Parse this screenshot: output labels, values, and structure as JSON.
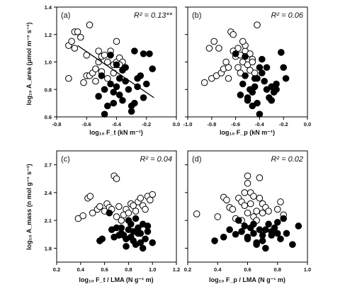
{
  "figure": {
    "ylabel_top": "log₁₀ A_area (μmol m⁻² s⁻¹)",
    "ylabel_bottom": "log₁₀ A_mass (n mol g⁻¹ s⁻¹)",
    "xlabels": [
      "log₁₀ F_t (kN m⁻¹)",
      "log₁₀ F_p (kN m⁻¹)",
      "log₁₀ F_t / LMA (N g⁻¹ m)",
      "log₁₀ F_p / LMA (N g⁻¹ m)"
    ]
  },
  "chart_data": [
    {
      "type": "scatter",
      "panel": "(a)",
      "annotation": "R² = 0.13**",
      "xlabel": "log₁₀ F_t (kN m⁻¹)",
      "ylabel": "log₁₀ A_area (μmol m⁻² s⁻¹)",
      "xlim": [
        -0.8,
        0.0
      ],
      "ylim": [
        0.6,
        1.4
      ],
      "xticks": [
        -0.8,
        -0.6,
        -0.4,
        -0.2,
        0.0
      ],
      "xticklabels": [
        "-0.8",
        "-0.6",
        "-0.4",
        "-0.2",
        "0.0"
      ],
      "yticks": [
        0.6,
        0.8,
        1.0,
        1.2,
        1.4
      ],
      "yticklabels": [
        "0.6",
        "0.8",
        "1.0",
        "1.2",
        "1.4"
      ],
      "regression_line": {
        "x": [
          -0.66,
          -0.15
        ],
        "y": [
          1.12,
          0.74
        ]
      },
      "series": [
        {
          "marker": "open-circle",
          "x": [
            -0.72,
            -0.7,
            -0.68,
            -0.66,
            -0.64,
            -0.62,
            -0.6,
            -0.58,
            -0.56,
            -0.54,
            -0.52,
            -0.5,
            -0.48,
            -0.46,
            -0.44,
            -0.42,
            -0.4,
            -0.38,
            -0.36,
            -0.72,
            -0.68,
            -0.58,
            -0.54,
            -0.5,
            -0.46,
            -0.42,
            -0.4,
            -0.52,
            -0.6,
            -0.38
          ],
          "y": [
            1.12,
            1.15,
            1.22,
            1.22,
            1.18,
            0.85,
            0.9,
            0.9,
            0.92,
            0.95,
            1.0,
            1.04,
            1.05,
            1.0,
            1.08,
            0.98,
            1.0,
            1.03,
            1.0,
            0.88,
            1.1,
            1.27,
            0.86,
            0.93,
            0.88,
            0.92,
            1.15,
            1.08,
            1.05,
            0.98
          ]
        },
        {
          "marker": "filled-circle",
          "x": [
            -0.52,
            -0.5,
            -0.48,
            -0.46,
            -0.44,
            -0.42,
            -0.4,
            -0.38,
            -0.36,
            -0.34,
            -0.32,
            -0.3,
            -0.28,
            -0.26,
            -0.24,
            -0.22,
            -0.2,
            -0.18,
            -0.16,
            -0.44,
            -0.4,
            -0.36,
            -0.3,
            -0.26,
            -0.48,
            -0.34,
            -0.22,
            -0.42,
            -0.38,
            -0.28
          ],
          "y": [
            0.75,
            0.9,
            0.8,
            0.68,
            0.84,
            0.78,
            0.82,
            0.76,
            0.94,
            0.86,
            0.8,
            0.64,
            0.7,
            0.88,
            0.9,
            1.06,
            0.84,
            1.06,
            0.95,
            1.05,
            0.98,
            0.72,
            0.68,
            0.82,
            0.62,
            0.96,
            0.74,
            0.7,
            0.88,
            1.08
          ]
        }
      ]
    },
    {
      "type": "scatter",
      "panel": "(b)",
      "annotation": "R² = 0.06",
      "xlabel": "log₁₀ F_p (kN m⁻¹)",
      "ylabel": "",
      "xlim": [
        -1.0,
        0.0
      ],
      "ylim": [
        0.6,
        1.4
      ],
      "xticks": [
        -1.0,
        -0.8,
        -0.6,
        -0.4,
        -0.2,
        0.0
      ],
      "xticklabels": [
        "-1.0",
        "-0.8",
        "-0.6",
        "-0.4",
        "-0.2",
        "0.0"
      ],
      "yticks": [
        0.6,
        0.8,
        1.0,
        1.2,
        1.4
      ],
      "yticklabels": [],
      "series": [
        {
          "marker": "open-circle",
          "x": [
            -0.86,
            -0.82,
            -0.8,
            -0.78,
            -0.76,
            -0.72,
            -0.7,
            -0.68,
            -0.66,
            -0.64,
            -0.62,
            -0.6,
            -0.58,
            -0.56,
            -0.54,
            -0.52,
            -0.5,
            -0.48,
            -0.46,
            -0.44,
            -0.42,
            -0.62,
            -0.58,
            -0.52,
            -0.46,
            -0.66,
            -0.56,
            -0.48,
            -0.74,
            -0.54
          ],
          "y": [
            0.85,
            1.1,
            0.88,
            1.15,
            0.9,
            0.92,
            0.95,
            1.0,
            0.96,
            1.22,
            1.2,
            1.04,
            1.1,
            1.05,
            1.0,
            1.08,
            0.98,
            0.94,
            1.02,
            0.92,
            1.27,
            1.08,
            0.96,
            1.12,
            1.0,
            0.88,
            0.92,
            1.06,
            1.1,
            1.15
          ]
        },
        {
          "marker": "filled-circle",
          "x": [
            -0.56,
            -0.54,
            -0.52,
            -0.5,
            -0.48,
            -0.46,
            -0.44,
            -0.42,
            -0.4,
            -0.38,
            -0.36,
            -0.34,
            -0.32,
            -0.3,
            -0.28,
            -0.26,
            -0.22,
            -0.2,
            -0.18,
            -0.52,
            -0.46,
            -0.42,
            -0.38,
            -0.34,
            -0.5,
            -0.44,
            -0.4,
            -0.3,
            -0.26,
            -0.6
          ],
          "y": [
            0.76,
            0.84,
            0.9,
            0.72,
            0.8,
            0.78,
            0.82,
            0.88,
            0.96,
            0.92,
            0.86,
            0.8,
            0.74,
            0.82,
            0.78,
            0.84,
            1.07,
            0.96,
            0.88,
            1.04,
            0.68,
            0.7,
            1.02,
            0.96,
            0.74,
            0.88,
            0.62,
            0.72,
            0.8,
            1.06
          ]
        }
      ]
    },
    {
      "type": "scatter",
      "panel": "(c)",
      "annotation": "R² = 0.04",
      "xlabel": "log₁₀ F_t / LMA (N g⁻¹ m)",
      "ylabel": "log₁₀ A_mass (n mol g⁻¹ s⁻¹)",
      "xlim": [
        0.2,
        1.2
      ],
      "ylim": [
        1.65,
        2.85
      ],
      "xticks": [
        0.2,
        0.4,
        0.6,
        0.8,
        1.0,
        1.2
      ],
      "xticklabels": [
        "0.2",
        "0.4",
        "0.6",
        "0.8",
        "1.0",
        "1.2"
      ],
      "yticks": [
        1.8,
        2.1,
        2.4,
        2.7
      ],
      "yticklabels": [
        "1.8",
        "2.1",
        "2.4",
        "2.7"
      ],
      "series": [
        {
          "marker": "open-circle",
          "x": [
            0.38,
            0.42,
            0.46,
            0.48,
            0.5,
            0.54,
            0.56,
            0.6,
            0.62,
            0.64,
            0.66,
            0.68,
            0.7,
            0.72,
            0.74,
            0.76,
            0.78,
            0.8,
            0.82,
            0.84,
            0.86,
            0.88,
            0.9,
            0.92,
            0.94,
            0.96,
            0.98,
            1.0,
            0.7,
            0.74
          ],
          "y": [
            2.12,
            2.15,
            2.34,
            2.36,
            2.18,
            2.22,
            2.25,
            2.2,
            2.28,
            2.24,
            2.22,
            2.58,
            2.55,
            2.25,
            2.1,
            2.16,
            2.22,
            2.18,
            2.28,
            2.26,
            2.2,
            2.3,
            2.34,
            2.26,
            2.22,
            2.36,
            2.32,
            2.38,
            2.14,
            2.1
          ]
        },
        {
          "marker": "filled-circle",
          "x": [
            0.56,
            0.58,
            0.64,
            0.68,
            0.7,
            0.74,
            0.76,
            0.78,
            0.8,
            0.82,
            0.84,
            0.86,
            0.88,
            0.9,
            0.92,
            0.94,
            0.96,
            1.0,
            0.66,
            0.72,
            0.8,
            0.84,
            0.88,
            0.92,
            0.78,
            0.86,
            0.96,
            0.82,
            0.74,
            0.9
          ],
          "y": [
            1.88,
            1.9,
            2.18,
            1.92,
            2.02,
            1.96,
            1.94,
            1.9,
            2.0,
            2.06,
            1.98,
            1.84,
            2.02,
            1.96,
            1.8,
            1.9,
            2.04,
            1.86,
            2.0,
            1.94,
            2.1,
            1.88,
            1.96,
            2.06,
            1.82,
            2.12,
            1.98,
            1.92,
            2.02,
            1.86
          ]
        }
      ]
    },
    {
      "type": "scatter",
      "panel": "(d)",
      "annotation": "R² = 0.02",
      "xlabel": "log₁₀ F_p / LMA (N g⁻¹ m)",
      "ylabel": "",
      "xlim": [
        0.2,
        1.0
      ],
      "ylim": [
        1.65,
        2.85
      ],
      "xticks": [
        0.2,
        0.4,
        0.6,
        0.8,
        1.0
      ],
      "xticklabels": [
        "0.2",
        "0.4",
        "0.6",
        "0.8",
        "1.0"
      ],
      "yticks": [
        1.8,
        2.1,
        2.4,
        2.7
      ],
      "yticklabels": [],
      "series": [
        {
          "marker": "open-circle",
          "x": [
            0.26,
            0.4,
            0.44,
            0.48,
            0.5,
            0.54,
            0.56,
            0.58,
            0.6,
            0.62,
            0.64,
            0.66,
            0.68,
            0.7,
            0.72,
            0.56,
            0.6,
            0.64,
            0.68,
            0.74,
            0.8,
            0.82,
            0.84,
            0.52,
            0.58,
            0.62,
            0.66,
            0.7,
            0.46,
            0.6
          ],
          "y": [
            2.17,
            2.14,
            2.35,
            2.24,
            2.22,
            2.34,
            2.3,
            2.26,
            2.58,
            2.4,
            2.36,
            2.2,
            2.56,
            2.28,
            2.24,
            2.1,
            2.18,
            2.14,
            2.34,
            2.2,
            2.22,
            2.3,
            2.16,
            2.12,
            2.4,
            2.28,
            2.1,
            2.18,
            2.32,
            2.5
          ]
        },
        {
          "marker": "filled-circle",
          "x": [
            0.38,
            0.44,
            0.48,
            0.52,
            0.54,
            0.56,
            0.58,
            0.6,
            0.62,
            0.64,
            0.66,
            0.68,
            0.7,
            0.72,
            0.74,
            0.76,
            0.78,
            0.8,
            0.82,
            0.84,
            0.86,
            0.9,
            0.94,
            0.6,
            0.64,
            0.7,
            0.76,
            0.66,
            0.72,
            0.8
          ],
          "y": [
            1.88,
            1.92,
            2.0,
            1.95,
            2.1,
            1.98,
            2.04,
            1.9,
            2.02,
            1.96,
            1.86,
            2.0,
            1.94,
            1.8,
            2.06,
            1.98,
            2.02,
            2.08,
            1.9,
            2.12,
            1.96,
            1.84,
            2.04,
            1.92,
            2.06,
            1.88,
            1.94,
            1.84,
            2.0,
            1.96
          ]
        }
      ]
    }
  ]
}
